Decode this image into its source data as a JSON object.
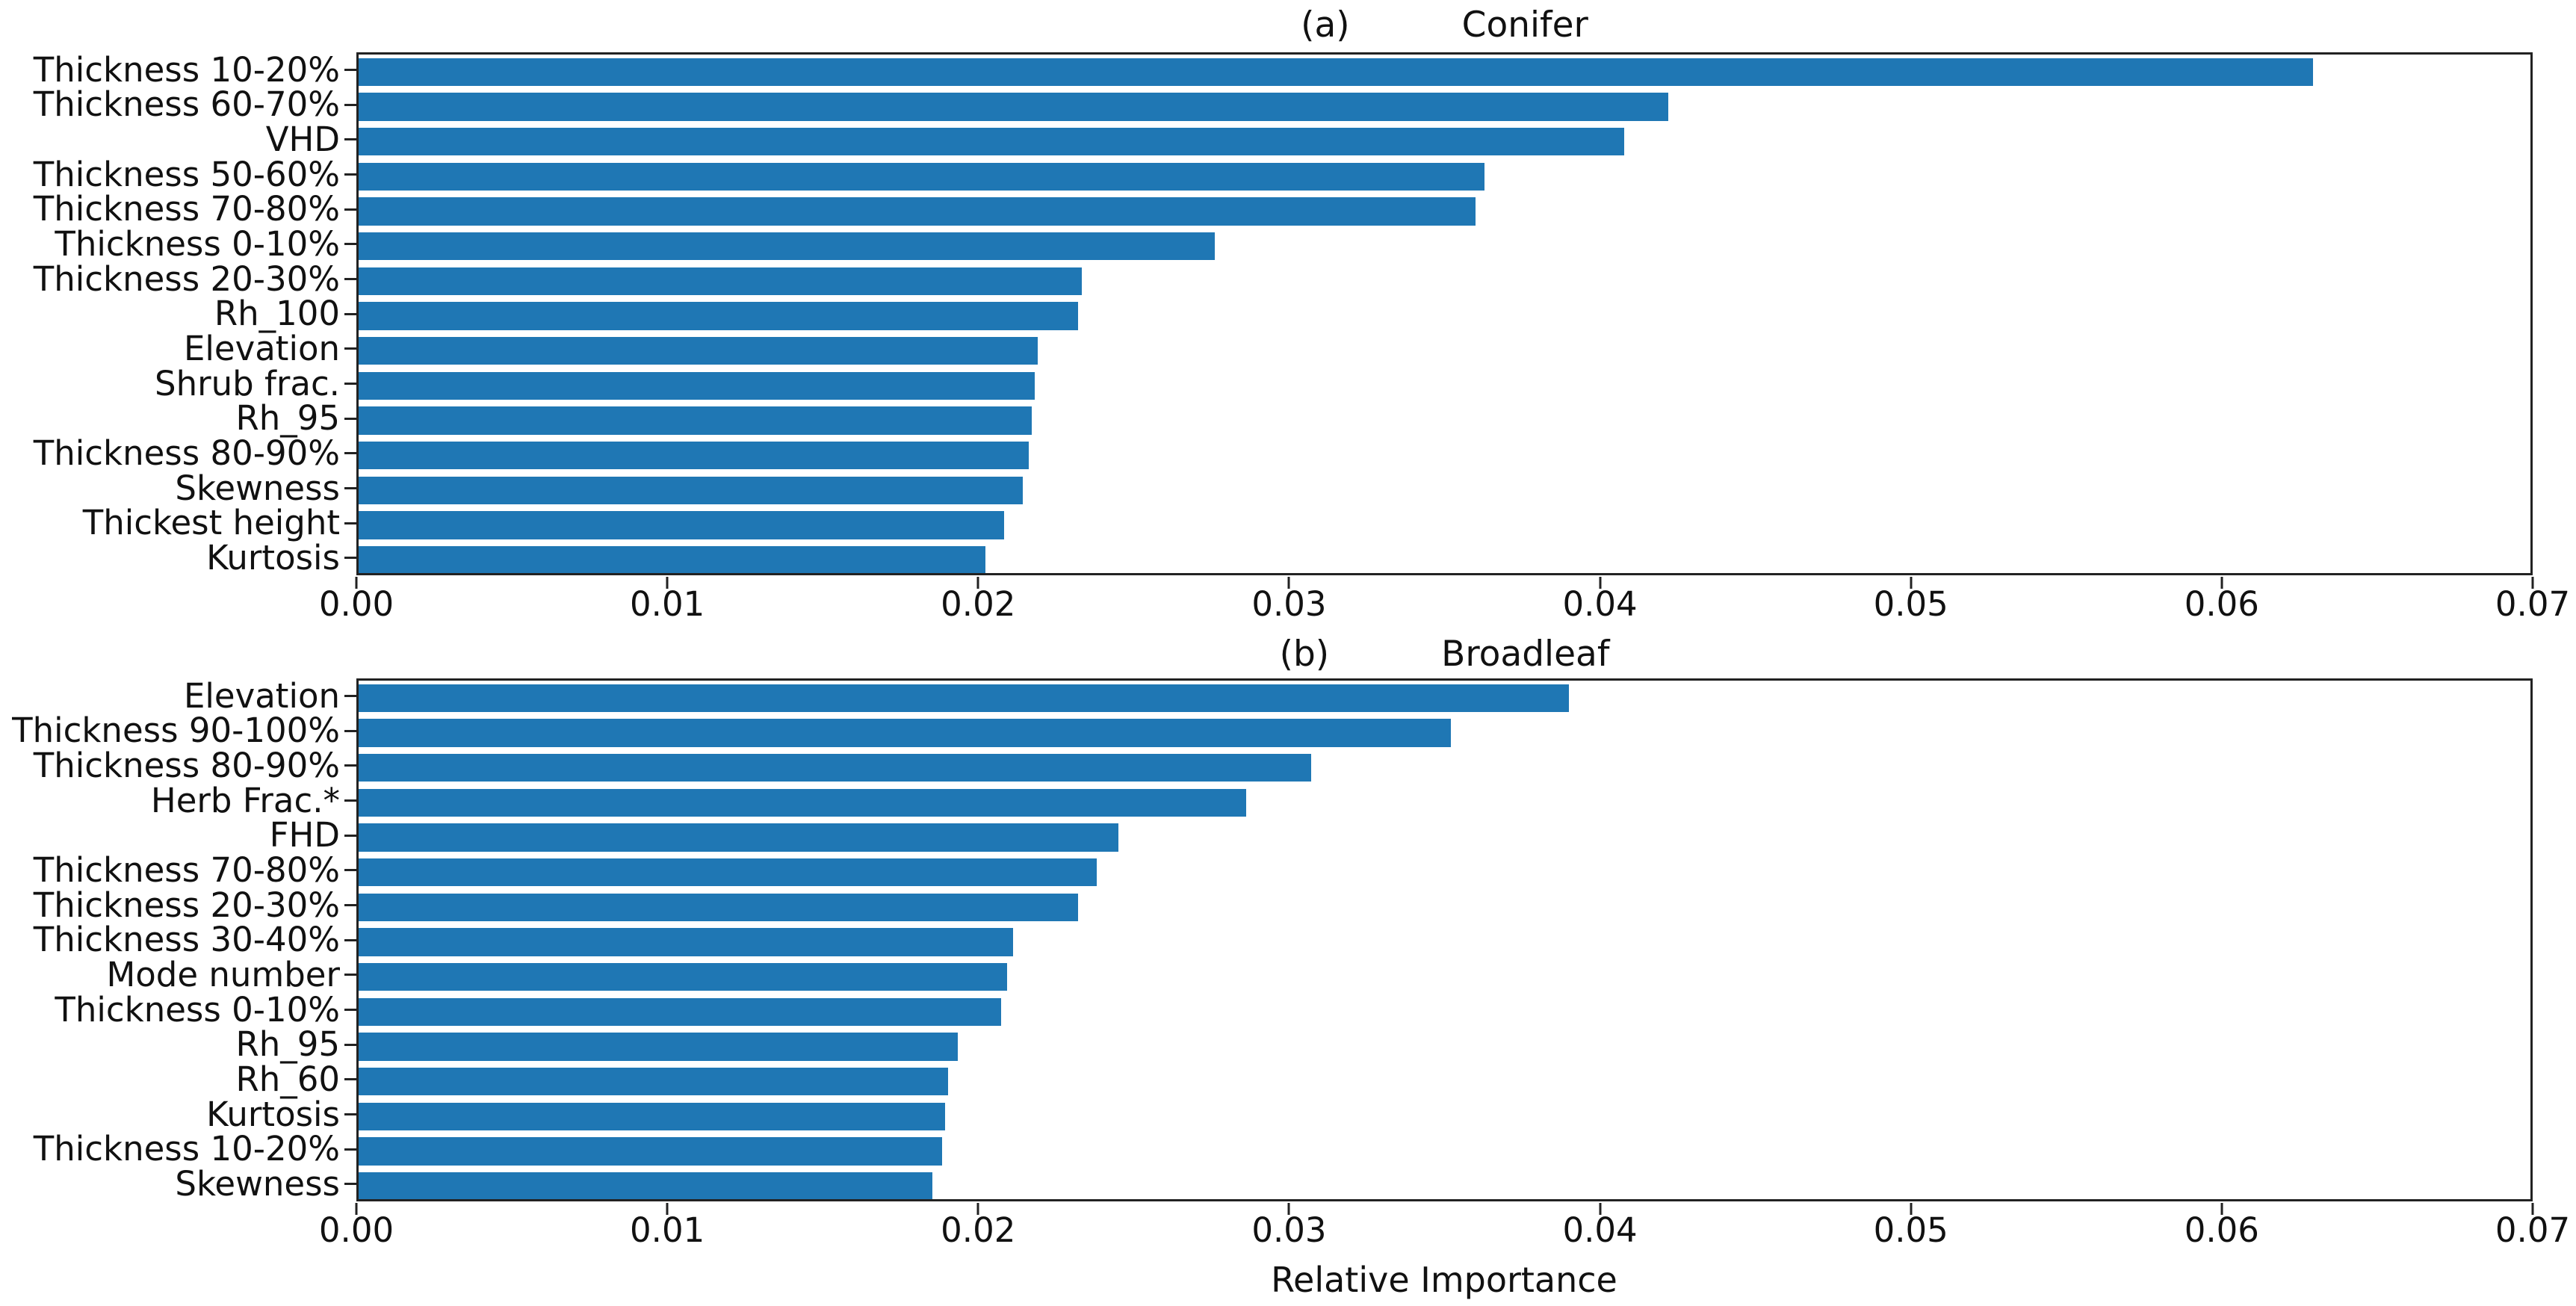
{
  "figure": {
    "bar_color": "#1f77b4",
    "spine_color": "#222222",
    "xlabel": "Relative Importance"
  },
  "chart_data": [
    {
      "type": "bar",
      "orientation": "horizontal",
      "panel_label": "(a)",
      "title": "Conifer",
      "xlabel": "Relative Importance",
      "xlim": [
        0,
        0.07
      ],
      "x_tick_labels": [
        "0.00",
        "0.01",
        "0.02",
        "0.03",
        "0.04",
        "0.05",
        "0.06",
        "0.07"
      ],
      "grid": false,
      "legend": false,
      "categories": [
        "Thickness 10-20%",
        "Thickness 60-70%",
        "VHD",
        "Thickness 50-60%",
        "Thickness 70-80%",
        "Thickness 0-10%",
        "Thickness 20-30%",
        "Rh_100",
        "Elevation",
        "Shrub frac.",
        "Rh_95",
        "Thickness 80-90%",
        "Skewness",
        "Thickest height",
        "Kurtosis"
      ],
      "values": [
        0.063,
        0.0422,
        0.0408,
        0.0363,
        0.036,
        0.0276,
        0.0233,
        0.0232,
        0.0219,
        0.0218,
        0.0217,
        0.0216,
        0.0214,
        0.0208,
        0.0202
      ]
    },
    {
      "type": "bar",
      "orientation": "horizontal",
      "panel_label": "(b)",
      "title": "Broadleaf",
      "xlabel": "Relative Importance",
      "xlim": [
        0,
        0.07
      ],
      "x_tick_labels": [
        "0.00",
        "0.01",
        "0.02",
        "0.03",
        "0.04",
        "0.05",
        "0.06",
        "0.07"
      ],
      "grid": false,
      "legend": false,
      "categories": [
        "Elevation",
        "Thickness 90-100%",
        "Thickness 80-90%",
        "Herb Frac.*",
        "FHD",
        "Thickness 70-80%",
        "Thickness 20-30%",
        "Thickness 30-40%",
        "Mode number",
        "Thickness 0-10%",
        "Rh_95",
        "Rh_60",
        "Kurtosis",
        "Thickness 10-20%",
        "Skewness"
      ],
      "values": [
        0.039,
        0.0352,
        0.0307,
        0.0286,
        0.0245,
        0.0238,
        0.0232,
        0.0211,
        0.0209,
        0.0207,
        0.0193,
        0.019,
        0.0189,
        0.0188,
        0.0185
      ]
    }
  ]
}
